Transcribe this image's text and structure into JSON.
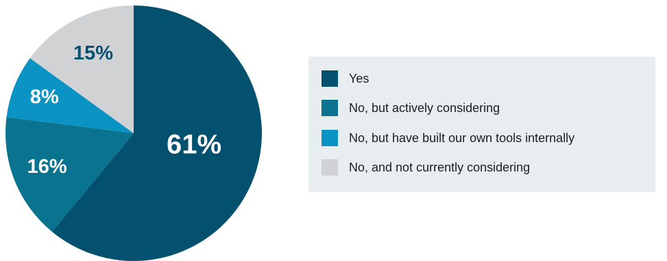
{
  "chart_data": {
    "type": "pie",
    "title": "",
    "categories": [
      "Yes",
      "No, but actively considering",
      "No, but have built our own tools internally",
      "No, and not currently considering"
    ],
    "values": [
      61,
      16,
      8,
      15
    ],
    "value_labels": [
      "61%",
      "16%",
      "8%",
      "15%"
    ],
    "colors": [
      "#03506f",
      "#0a7390",
      "#0a93c3",
      "#d1d2d4"
    ],
    "start": "12 o'clock",
    "direction": "clockwise",
    "legend_placement": "right"
  },
  "legend": {
    "items": [
      {
        "label": "Yes",
        "color": "#03506f"
      },
      {
        "label": "No, but actively considering",
        "color": "#0a7390"
      },
      {
        "label": "No, but have built our own tools internally",
        "color": "#0a93c3"
      },
      {
        "label": "No, and not currently considering",
        "color": "#d1d2d4"
      }
    ],
    "background": "#e8edf0"
  }
}
